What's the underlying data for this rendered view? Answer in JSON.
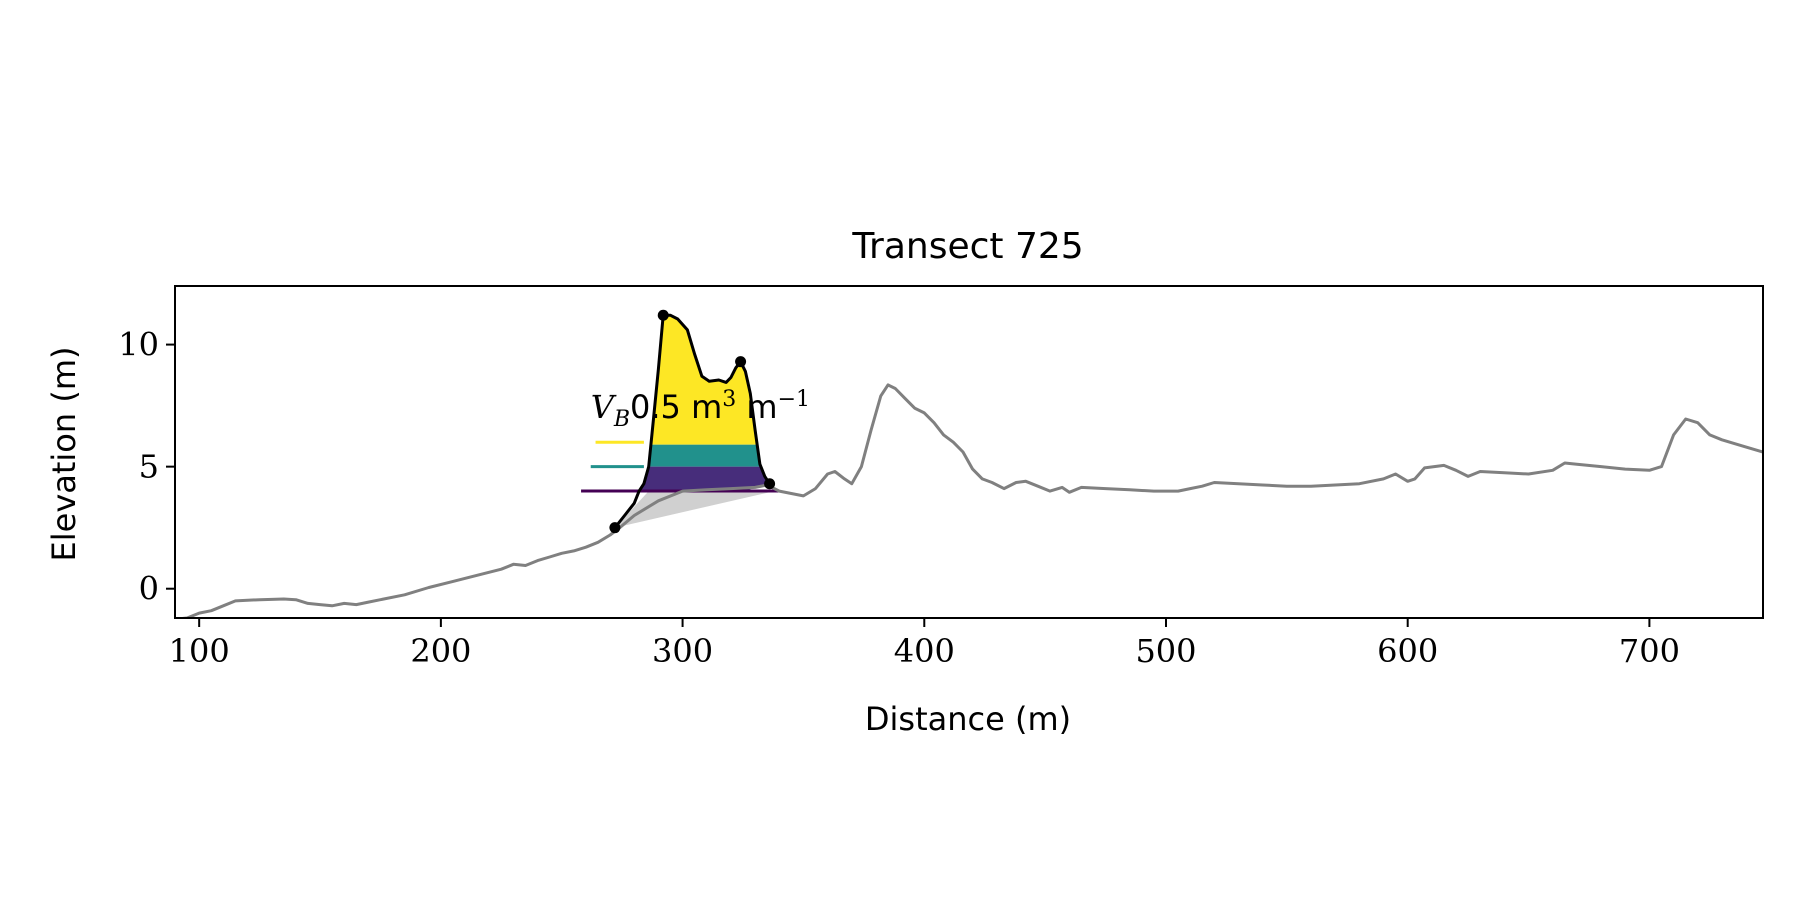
{
  "chart_data": {
    "type": "line",
    "title": "Transect 725",
    "xlabel": "Distance (m)",
    "ylabel": "Elevation (m)",
    "xlim": [
      90,
      747
    ],
    "ylim": [
      -1.2,
      12.4
    ],
    "xticks": [
      100,
      200,
      300,
      400,
      500,
      600,
      700
    ],
    "yticks": [
      0,
      5,
      10
    ],
    "grid": false,
    "annotation": {
      "symbol": "V",
      "subscript": "B",
      "value_text": "0.5 m",
      "unit_exp1": "3",
      "unit_mid": " m",
      "unit_exp2": "−1",
      "x": 262,
      "y": 7.0
    },
    "series": [
      {
        "role": "profile",
        "color": "#808080",
        "points": [
          [
            90,
            -1.25
          ],
          [
            95,
            -1.2
          ],
          [
            100,
            -1.0
          ],
          [
            105,
            -0.9
          ],
          [
            110,
            -0.7
          ],
          [
            115,
            -0.5
          ],
          [
            125,
            -0.45
          ],
          [
            135,
            -0.42
          ],
          [
            140,
            -0.45
          ],
          [
            145,
            -0.6
          ],
          [
            150,
            -0.65
          ],
          [
            155,
            -0.7
          ],
          [
            160,
            -0.6
          ],
          [
            165,
            -0.65
          ],
          [
            170,
            -0.55
          ],
          [
            175,
            -0.45
          ],
          [
            185,
            -0.25
          ],
          [
            195,
            0.05
          ],
          [
            205,
            0.3
          ],
          [
            215,
            0.55
          ],
          [
            225,
            0.8
          ],
          [
            230,
            1.0
          ],
          [
            235,
            0.95
          ],
          [
            240,
            1.15
          ],
          [
            245,
            1.3
          ],
          [
            250,
            1.45
          ],
          [
            255,
            1.55
          ],
          [
            260,
            1.7
          ],
          [
            265,
            1.9
          ],
          [
            270,
            2.2
          ],
          [
            274,
            2.5
          ],
          [
            280,
            3.0
          ],
          [
            290,
            3.6
          ],
          [
            300,
            4.0
          ],
          [
            310,
            4.05
          ],
          [
            320,
            4.1
          ],
          [
            330,
            4.15
          ],
          [
            335,
            4.25
          ],
          [
            340,
            4.0
          ],
          [
            345,
            3.9
          ],
          [
            350,
            3.8
          ],
          [
            355,
            4.1
          ],
          [
            360,
            4.7
          ],
          [
            363,
            4.8
          ],
          [
            367,
            4.5
          ],
          [
            370,
            4.3
          ],
          [
            374,
            5.0
          ],
          [
            378,
            6.5
          ],
          [
            382,
            7.9
          ],
          [
            385,
            8.35
          ],
          [
            388,
            8.2
          ],
          [
            392,
            7.8
          ],
          [
            396,
            7.4
          ],
          [
            400,
            7.2
          ],
          [
            404,
            6.8
          ],
          [
            408,
            6.3
          ],
          [
            412,
            6.0
          ],
          [
            416,
            5.6
          ],
          [
            420,
            4.9
          ],
          [
            424,
            4.5
          ],
          [
            428,
            4.35
          ],
          [
            433,
            4.1
          ],
          [
            438,
            4.35
          ],
          [
            442,
            4.4
          ],
          [
            447,
            4.2
          ],
          [
            452,
            4.0
          ],
          [
            457,
            4.15
          ],
          [
            460,
            3.95
          ],
          [
            465,
            4.15
          ],
          [
            475,
            4.1
          ],
          [
            485,
            4.05
          ],
          [
            495,
            4.0
          ],
          [
            505,
            4.0
          ],
          [
            510,
            4.1
          ],
          [
            515,
            4.2
          ],
          [
            520,
            4.35
          ],
          [
            530,
            4.3
          ],
          [
            540,
            4.25
          ],
          [
            550,
            4.2
          ],
          [
            560,
            4.2
          ],
          [
            570,
            4.25
          ],
          [
            580,
            4.3
          ],
          [
            590,
            4.5
          ],
          [
            595,
            4.7
          ],
          [
            600,
            4.4
          ],
          [
            603,
            4.5
          ],
          [
            607,
            4.95
          ],
          [
            615,
            5.05
          ],
          [
            620,
            4.85
          ],
          [
            625,
            4.6
          ],
          [
            630,
            4.8
          ],
          [
            640,
            4.75
          ],
          [
            650,
            4.7
          ],
          [
            660,
            4.85
          ],
          [
            665,
            5.15
          ],
          [
            670,
            5.1
          ],
          [
            680,
            5.0
          ],
          [
            690,
            4.9
          ],
          [
            700,
            4.85
          ],
          [
            705,
            5.0
          ],
          [
            710,
            6.3
          ],
          [
            715,
            6.95
          ],
          [
            720,
            6.8
          ],
          [
            725,
            6.3
          ],
          [
            730,
            6.1
          ],
          [
            740,
            5.8
          ],
          [
            747,
            5.6
          ]
        ]
      },
      {
        "role": "dune-outline",
        "color": "#000000",
        "points": [
          [
            272,
            2.5
          ],
          [
            276,
            3.0
          ],
          [
            280,
            3.5
          ],
          [
            282,
            4.0
          ],
          [
            284,
            4.3
          ],
          [
            286,
            5.0
          ],
          [
            288,
            7.0
          ],
          [
            290,
            9.0
          ],
          [
            292,
            11.2
          ],
          [
            295,
            11.2
          ],
          [
            298,
            11.05
          ],
          [
            302,
            10.6
          ],
          [
            305,
            9.6
          ],
          [
            308,
            8.7
          ],
          [
            311,
            8.5
          ],
          [
            315,
            8.55
          ],
          [
            318,
            8.45
          ],
          [
            320,
            8.65
          ],
          [
            322,
            9.05
          ],
          [
            324,
            9.3
          ],
          [
            326,
            8.9
          ],
          [
            328,
            8.0
          ],
          [
            330,
            6.5
          ],
          [
            332,
            5.1
          ],
          [
            334,
            4.6
          ],
          [
            336,
            4.3
          ]
        ]
      }
    ],
    "markers": [
      [
        272,
        2.5
      ],
      [
        292,
        11.2
      ],
      [
        324,
        9.3
      ],
      [
        336,
        4.3
      ]
    ],
    "fill_yellow": {
      "color": "#fde725",
      "ybottom": 5.9
    },
    "bands": [
      {
        "color": "#21918c",
        "ybottom": 5.0,
        "ytop": 5.9
      },
      {
        "color": "#472d7b",
        "ybottom": 4.0,
        "ytop": 5.0
      }
    ],
    "base_fill": {
      "color": "#d0d0d0",
      "points": [
        [
          272,
          2.5
        ],
        [
          286,
          4.0
        ],
        [
          338,
          4.0
        ]
      ]
    },
    "threshold_lines": [
      {
        "color": "#fde725",
        "y": 6.0,
        "x1": 264,
        "x2": 284
      },
      {
        "color": "#21918c",
        "y": 5.0,
        "x1": 262,
        "x2": 284
      },
      {
        "color": "#440154",
        "y": 4.0,
        "x1": 258,
        "x2": 340
      }
    ]
  }
}
